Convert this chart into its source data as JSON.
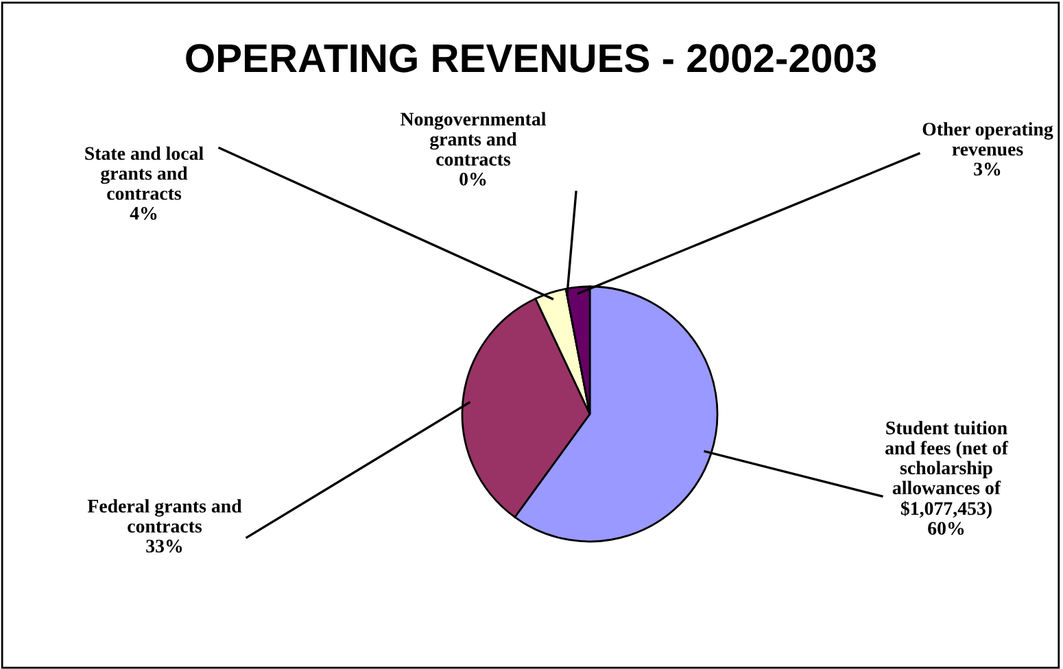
{
  "chart_data": {
    "type": "pie",
    "title": "OPERATING REVENUES - 2002-2003",
    "categories": [
      "Student tuition and fees (net of scholarship allowances of $1,077,453)",
      "Federal grants and contracts",
      "State and local grants and contracts",
      "Nongovernmental grants and contracts",
      "Other operating revenues"
    ],
    "values": [
      60,
      33,
      4,
      0,
      3
    ],
    "value_labels": [
      "60%",
      "33%",
      "4%",
      "0%",
      "3%"
    ],
    "colors": [
      "#9999ff",
      "#993366",
      "#ffffcc",
      "#ccffff",
      "#660066"
    ]
  }
}
